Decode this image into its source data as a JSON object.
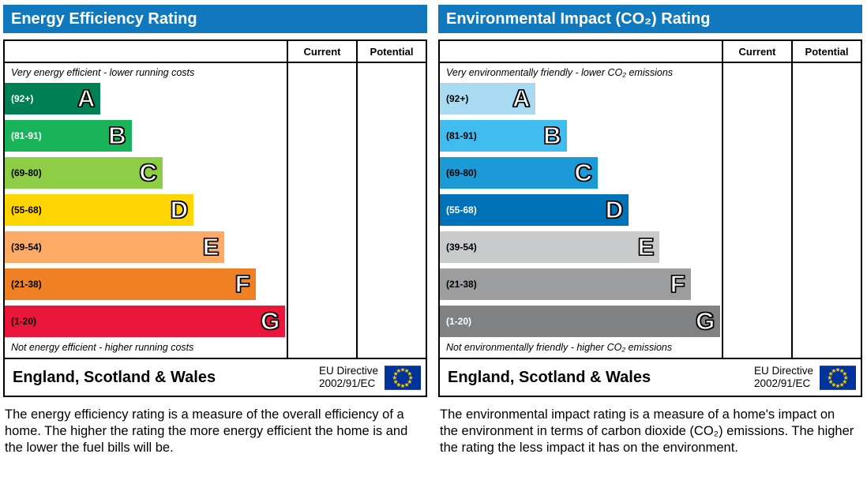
{
  "colors": {
    "header_bg": "#1278bd",
    "header_text": "#ffffff",
    "flag_bg": "#003399",
    "flag_stars": "#ffcc00"
  },
  "chart_data": [
    {
      "type": "bar",
      "orientation": "horizontal",
      "title": "Energy Efficiency Rating",
      "columns": [
        "Current",
        "Potential"
      ],
      "top_caption": "Very energy efficient - lower running costs",
      "bottom_caption": "Not energy efficient - higher running costs",
      "bands": [
        {
          "letter": "A",
          "range": "(92+)",
          "score_min": 92,
          "score_max": 100,
          "color": "#008054",
          "range_text_color": "#ffffff",
          "width_pct": 34
        },
        {
          "letter": "B",
          "range": "(81-91)",
          "score_min": 81,
          "score_max": 91,
          "color": "#19b459",
          "range_text_color": "#ffffff",
          "width_pct": 45
        },
        {
          "letter": "C",
          "range": "(69-80)",
          "score_min": 69,
          "score_max": 80,
          "color": "#8dce46",
          "range_text_color": "#000000",
          "width_pct": 56
        },
        {
          "letter": "D",
          "range": "(55-68)",
          "score_min": 55,
          "score_max": 68,
          "color": "#ffd500",
          "range_text_color": "#000000",
          "width_pct": 67
        },
        {
          "letter": "E",
          "range": "(39-54)",
          "score_min": 39,
          "score_max": 54,
          "color": "#fcaa65",
          "range_text_color": "#000000",
          "width_pct": 78
        },
        {
          "letter": "F",
          "range": "(21-38)",
          "score_min": 21,
          "score_max": 38,
          "color": "#ef8023",
          "range_text_color": "#000000",
          "width_pct": 89
        },
        {
          "letter": "G",
          "range": "(1-20)",
          "score_min": 1,
          "score_max": 20,
          "color": "#e9153b",
          "range_text_color": "#000000",
          "width_pct": 99.5
        }
      ],
      "current_value": "",
      "potential_value": "",
      "footer": {
        "region": "England, Scotland & Wales",
        "directive_line1": "EU Directive",
        "directive_line2": "2002/91/EC"
      },
      "description": "The energy efficiency rating is a measure of the overall efficiency of a home. The higher the rating the more energy efficient the home is and the lower the fuel bills will be."
    },
    {
      "type": "bar",
      "orientation": "horizontal",
      "title": "Environmental Impact (CO₂) Rating",
      "columns": [
        "Current",
        "Potential"
      ],
      "top_caption": "Very environmentally friendly - lower CO₂ emissions",
      "bottom_caption": "Not environmentally friendly - higher CO₂ emissions",
      "bands": [
        {
          "letter": "A",
          "range": "(92+)",
          "score_min": 92,
          "score_max": 100,
          "color": "#a8dbf2",
          "range_text_color": "#000000",
          "width_pct": 34
        },
        {
          "letter": "B",
          "range": "(81-91)",
          "score_min": 81,
          "score_max": 91,
          "color": "#40bdee",
          "range_text_color": "#000000",
          "width_pct": 45
        },
        {
          "letter": "C",
          "range": "(69-80)",
          "score_min": 69,
          "score_max": 80,
          "color": "#1b9ad7",
          "range_text_color": "#000000",
          "width_pct": 56
        },
        {
          "letter": "D",
          "range": "(55-68)",
          "score_min": 55,
          "score_max": 68,
          "color": "#0072b9",
          "range_text_color": "#ffffff",
          "width_pct": 67
        },
        {
          "letter": "E",
          "range": "(39-54)",
          "score_min": 39,
          "score_max": 54,
          "color": "#c9cacc",
          "range_text_color": "#000000",
          "width_pct": 78
        },
        {
          "letter": "F",
          "range": "(21-38)",
          "score_min": 21,
          "score_max": 38,
          "color": "#9c9d9f",
          "range_text_color": "#000000",
          "width_pct": 89
        },
        {
          "letter": "G",
          "range": "(1-20)",
          "score_min": 1,
          "score_max": 20,
          "color": "#7f8183",
          "range_text_color": "#ffffff",
          "width_pct": 99.5
        }
      ],
      "current_value": "",
      "potential_value": "",
      "footer": {
        "region": "England, Scotland & Wales",
        "directive_line1": "EU Directive",
        "directive_line2": "2002/91/EC"
      },
      "description": "The environmental impact rating is a measure of a home's impact on the environment in terms of carbon dioxide (CO₂) emissions. The higher the rating the less impact it has on the environment."
    }
  ]
}
